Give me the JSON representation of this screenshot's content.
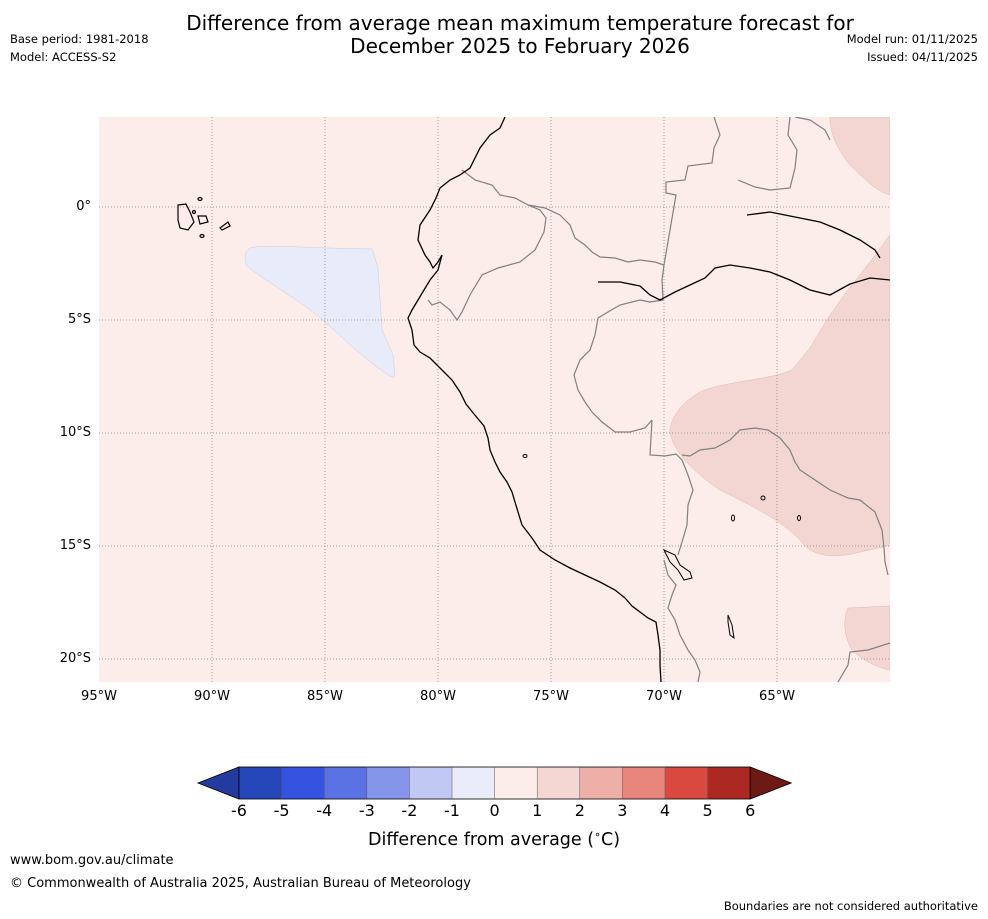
{
  "title_line1": "Difference from average mean maximum temperature forecast for",
  "title_line2": "December 2025 to February 2026",
  "base_period": "Base period: 1981-2018",
  "model": "Model: ACCESS-S2",
  "model_run": "Model run: 01/11/2025",
  "issued": "Issued: 04/11/2025",
  "map": {
    "lat_labels": [
      "0°",
      "5°S",
      "10°S",
      "15°S",
      "20°S"
    ],
    "lon_labels": [
      "95°W",
      "90°W",
      "85°W",
      "80°W",
      "75°W",
      "70°W",
      "65°W"
    ],
    "background_class": "0 to 1",
    "regions": [
      {
        "name": "cool-anomaly-pacific",
        "class": "-1 to 0",
        "color": "#e8ecf8"
      },
      {
        "name": "warm-anomaly-amazon-east",
        "class": "1 to 2",
        "color": "#f3d6d2"
      },
      {
        "name": "warm-anomaly-northeast",
        "class": "1 to 2",
        "color": "#f3d6d2"
      },
      {
        "name": "warm-anomaly-southeast",
        "class": "1 to 2",
        "color": "#f3d6d2"
      }
    ]
  },
  "colorbar": {
    "ticks": [
      "-6",
      "-5",
      "-4",
      "-3",
      "-2",
      "-1",
      "0",
      "1",
      "2",
      "3",
      "4",
      "5",
      "6"
    ],
    "colors": [
      "#233a9f",
      "#2547b9",
      "#3552e1",
      "#5b72e4",
      "#8595e9",
      "#c1c8f3",
      "#eaecfa",
      "#fcecea",
      "#f4d6d2",
      "#efafa9",
      "#e8857c",
      "#d9493f",
      "#ab2922",
      "#6e1a14"
    ],
    "label": "Difference from average (",
    "label_unit": "C)",
    "label_degree": "∘"
  },
  "footer": {
    "url": "www.bom.gov.au/climate",
    "copyright": "© Commonwealth of Australia 2025, Australian Bureau of Meteorology",
    "disclaimer": "Boundaries are not considered authoritative"
  },
  "colors": {
    "map_background": "#fcecea",
    "coastline": "#000000",
    "border": "#808080",
    "gridline": "#888888"
  }
}
